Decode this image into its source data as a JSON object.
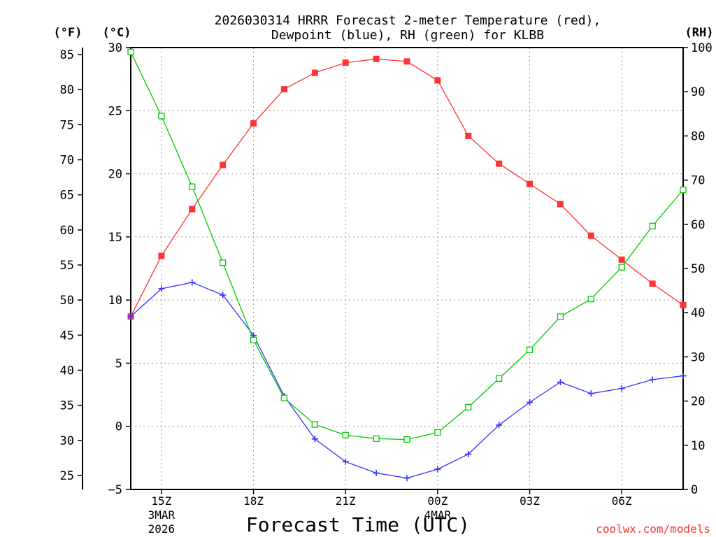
{
  "chart_data": {
    "type": "line",
    "title_line1": "2026030314 HRRR Forecast 2-meter Temperature (red),",
    "title_line2": "Dewpoint (blue), RH (green) for KLBB",
    "xlabel": "Forecast Time (UTC)",
    "credit": "coolwx.com/models",
    "left_f_unit": "(°F)",
    "left_c_unit": "(°C)",
    "right_unit": "(RH)",
    "hours": [
      14,
      15,
      16,
      17,
      18,
      19,
      20,
      21,
      22,
      23,
      24,
      25,
      26,
      27,
      28,
      29,
      30,
      31,
      32
    ],
    "x_range_hours": [
      14,
      32
    ],
    "c_range": [
      -5,
      30
    ],
    "rh_range": [
      0,
      100
    ],
    "f_range": [
      23,
      86
    ],
    "c_ticks": [
      {
        "value": 30,
        "label": "30"
      },
      {
        "value": 25,
        "label": "25"
      },
      {
        "value": 20,
        "label": "20"
      },
      {
        "value": 15,
        "label": "15"
      },
      {
        "value": 10,
        "label": "10"
      },
      {
        "value": 5,
        "label": "5"
      },
      {
        "value": 0,
        "label": "0"
      },
      {
        "value": -5,
        "label": "−5"
      }
    ],
    "f_ticks": [
      {
        "value": 85,
        "label": "85"
      },
      {
        "value": 80,
        "label": "80"
      },
      {
        "value": 75,
        "label": "75"
      },
      {
        "value": 70,
        "label": "70"
      },
      {
        "value": 65,
        "label": "65"
      },
      {
        "value": 60,
        "label": "60"
      },
      {
        "value": 55,
        "label": "55"
      },
      {
        "value": 50,
        "label": "50"
      },
      {
        "value": 45,
        "label": "45"
      },
      {
        "value": 40,
        "label": "40"
      },
      {
        "value": 35,
        "label": "35"
      },
      {
        "value": 30,
        "label": "30"
      },
      {
        "value": 25,
        "label": "25"
      }
    ],
    "rh_ticks": [
      {
        "value": 100,
        "label": "100"
      },
      {
        "value": 90,
        "label": "90"
      },
      {
        "value": 80,
        "label": "80"
      },
      {
        "value": 70,
        "label": "70"
      },
      {
        "value": 60,
        "label": "60"
      },
      {
        "value": 50,
        "label": "50"
      },
      {
        "value": 40,
        "label": "40"
      },
      {
        "value": 30,
        "label": "30"
      },
      {
        "value": 20,
        "label": "20"
      },
      {
        "value": 10,
        "label": "10"
      },
      {
        "value": 0,
        "label": "0"
      }
    ],
    "x_ticks": [
      {
        "hour": 15,
        "label": "15Z",
        "date": "3MAR",
        "year": "2026"
      },
      {
        "hour": 18,
        "label": "18Z"
      },
      {
        "hour": 21,
        "label": "21Z"
      },
      {
        "hour": 24,
        "label": "00Z",
        "date": "4MAR"
      },
      {
        "hour": 27,
        "label": "03Z"
      },
      {
        "hour": 30,
        "label": "06Z"
      }
    ],
    "series": [
      {
        "name": "Temperature",
        "unit": "C",
        "color": "#ff3333",
        "marker": "filled-square",
        "values": [
          8.7,
          13.5,
          17.2,
          20.7,
          24.0,
          26.7,
          28.0,
          28.8,
          29.1,
          28.9,
          27.4,
          23.0,
          20.8,
          19.2,
          17.6,
          15.1,
          13.2,
          11.3,
          9.6
        ]
      },
      {
        "name": "Dewpoint",
        "unit": "C",
        "color": "#3333ff",
        "marker": "plus",
        "values": [
          8.7,
          10.9,
          11.4,
          10.4,
          7.2,
          2.4,
          -1.0,
          -2.8,
          -3.7,
          -4.1,
          -3.4,
          -2.2,
          0.1,
          1.9,
          3.5,
          2.6,
          3.0,
          3.7,
          4.0
        ]
      },
      {
        "name": "RH",
        "unit": "%",
        "color": "#00cc00",
        "marker": "open-square",
        "values": [
          99,
          84.5,
          68.5,
          51.3,
          33.8,
          20.7,
          14.7,
          12.3,
          11.5,
          11.3,
          12.9,
          18.6,
          25.1,
          31.6,
          39.1,
          43.1,
          50.3,
          59.6,
          67.8
        ]
      }
    ]
  }
}
